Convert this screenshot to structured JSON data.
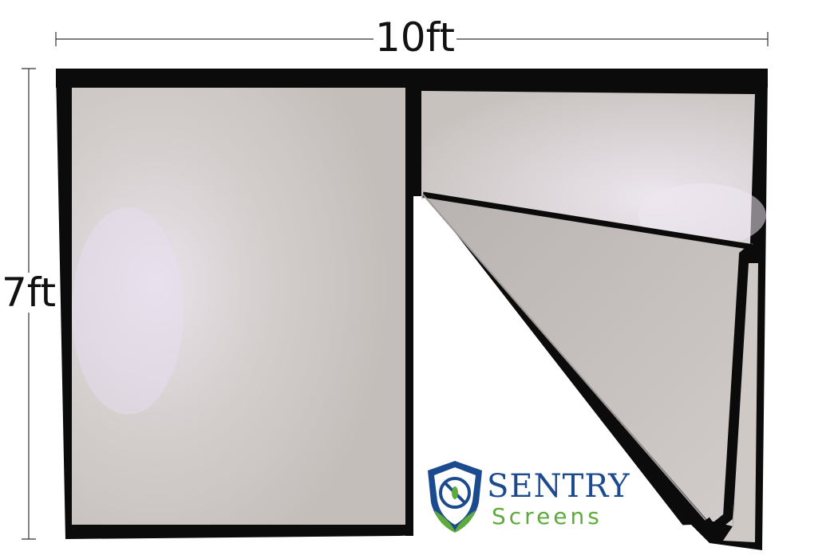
{
  "dimensions": {
    "width_label": "10ft",
    "height_label": "7ft"
  },
  "brand": {
    "name_line1": "SENTRY",
    "name_line2": "Screens",
    "colors": {
      "primary": "#1b4a8f",
      "secondary": "#5eaa3c"
    }
  },
  "product": {
    "frame_color": "#0a0a0a",
    "mesh_color": "#c9c3c0",
    "icons": [
      "shield-logo-icon",
      "no-mosquito-icon"
    ]
  }
}
